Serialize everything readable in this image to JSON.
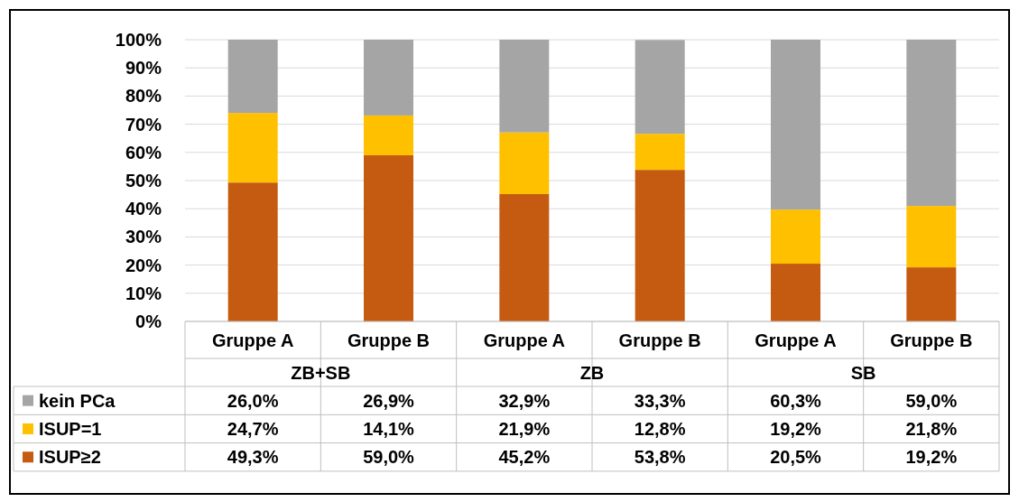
{
  "chart_data": {
    "type": "bar",
    "stacked": true,
    "categories": [
      "Gruppe A",
      "Gruppe B",
      "Gruppe A",
      "Gruppe B",
      "Gruppe A",
      "Gruppe B"
    ],
    "annotations": [
      "ZB+SB",
      "ZB",
      "SB"
    ],
    "series": [
      {
        "name": "ISUP≥2",
        "color": "#c55a11",
        "values": [
          49.3,
          59.0,
          45.2,
          53.8,
          20.5,
          19.2
        ],
        "value_labels": [
          "49,3%",
          "59,0%",
          "45,2%",
          "53,8%",
          "20,5%",
          "19,2%"
        ]
      },
      {
        "name": "ISUP=1",
        "color": "#ffc000",
        "values": [
          24.7,
          14.1,
          21.9,
          12.8,
          19.2,
          21.8
        ],
        "value_labels": [
          "24,7%",
          "14,1%",
          "21,9%",
          "12,8%",
          "19,2%",
          "21,8%"
        ]
      },
      {
        "name": "kein PCa",
        "color": "#a5a5a5",
        "values": [
          26.0,
          26.9,
          32.9,
          33.3,
          60.3,
          59.0
        ],
        "value_labels": [
          "26,0%",
          "26,9%",
          "32,9%",
          "33,3%",
          "60,3%",
          "59,0%"
        ]
      }
    ],
    "ylim": [
      0,
      100
    ],
    "yticks": [
      {
        "value": 0,
        "label": "0%"
      },
      {
        "value": 10,
        "label": "10%"
      },
      {
        "value": 20,
        "label": "20%"
      },
      {
        "value": 30,
        "label": "30%"
      },
      {
        "value": 40,
        "label": "40%"
      },
      {
        "value": 50,
        "label": "50%"
      },
      {
        "value": 60,
        "label": "60%"
      },
      {
        "value": 70,
        "label": "70%"
      },
      {
        "value": 80,
        "label": "80%"
      },
      {
        "value": 90,
        "label": "90%"
      },
      {
        "value": 100,
        "label": "100%"
      }
    ],
    "grid": "y",
    "legend": "bottom"
  }
}
